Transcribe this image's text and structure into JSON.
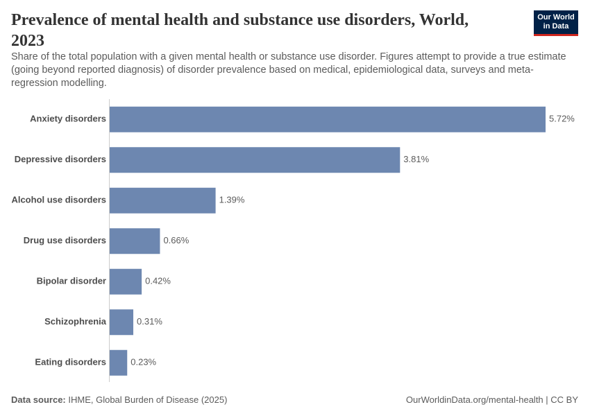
{
  "chart_data": {
    "type": "bar",
    "orientation": "horizontal",
    "title": "Prevalence of mental health and substance use disorders, World, 2023",
    "subtitle": "Share of the total population with a given mental health or substance use disorder. Figures attempt to provide a true estimate (going beyond reported diagnosis) of disorder prevalence based on medical, epidemiological data, surveys and meta-regression modelling.",
    "categories": [
      "Anxiety disorders",
      "Depressive disorders",
      "Alcohol use disorders",
      "Drug use disorders",
      "Bipolar disorder",
      "Schizophrenia",
      "Eating disorders"
    ],
    "values": [
      5.72,
      3.81,
      1.39,
      0.66,
      0.42,
      0.31,
      0.23
    ],
    "value_labels": [
      "5.72%",
      "3.81%",
      "1.39%",
      "0.66%",
      "0.42%",
      "0.31%",
      "0.23%"
    ],
    "color": "#6d87b0",
    "source_label": "Data source:",
    "source": "IHME, Global Burden of Disease (2025)",
    "url": "OurWorldinData.org/mental-health | CC BY",
    "logo": [
      "Our World",
      "in Data"
    ]
  }
}
